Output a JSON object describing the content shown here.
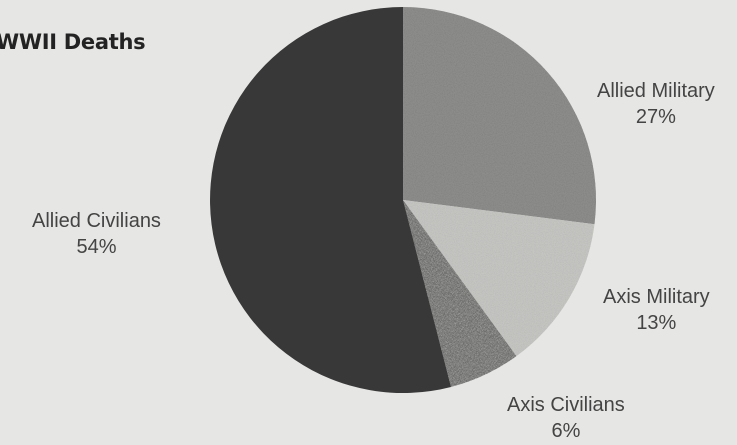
{
  "chart_data": {
    "type": "pie",
    "title": "WWII Deaths",
    "slices": [
      {
        "label": "Allied Military",
        "value": 27,
        "display": "27%",
        "color": "#8c8c8a",
        "pattern": "coarse-grain"
      },
      {
        "label": "Axis Military",
        "value": 13,
        "display": "13%",
        "color": "#c4c4c1",
        "pattern": "light-speckle"
      },
      {
        "label": "Axis Civilians",
        "value": 6,
        "display": "6%",
        "color": "#6e6e6c",
        "pattern": "dark-speckle"
      },
      {
        "label": "Allied Civilians",
        "value": 54,
        "display": "54%",
        "color": "#383838",
        "pattern": "solid"
      }
    ],
    "start_angle_deg": 0,
    "direction": "clockwise",
    "legend": "none",
    "labels": "outside"
  }
}
